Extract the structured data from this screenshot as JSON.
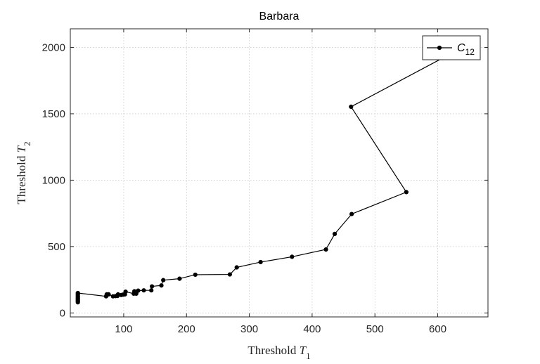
{
  "chart_data": {
    "type": "line",
    "title": "Barbara",
    "xlabel": {
      "prefix": "Threshold ",
      "var": "T",
      "sub": "1"
    },
    "ylabel": {
      "prefix": "Threshold ",
      "var": "T",
      "sub": "2"
    },
    "xlim": [
      15,
      680
    ],
    "ylim": [
      -30,
      2140
    ],
    "xticks": [
      100,
      200,
      300,
      400,
      500,
      600
    ],
    "yticks": [
      0,
      500,
      1000,
      1500,
      2000
    ],
    "grid": true,
    "legend": {
      "placement": "top-right",
      "entries": [
        {
          "base": "C",
          "sub": "12"
        }
      ]
    },
    "series": [
      {
        "name": "C12",
        "color": "#000000",
        "marker": "dot",
        "x": [
          27,
          27,
          27,
          27,
          27,
          27,
          27,
          27,
          27,
          27,
          72,
          73,
          76,
          83,
          87,
          90,
          91,
          96,
          99,
          102,
          103,
          116,
          117,
          120,
          123,
          132,
          144,
          145,
          160,
          163,
          189,
          214,
          269,
          280,
          318,
          368,
          422,
          436,
          463,
          550,
          462,
          608
        ],
        "y": [
          80,
          88,
          95,
          103,
          110,
          118,
          127,
          135,
          143,
          150,
          125,
          140,
          140,
          125,
          127,
          128,
          140,
          135,
          138,
          140,
          160,
          145,
          163,
          145,
          168,
          170,
          170,
          200,
          207,
          247,
          258,
          288,
          290,
          343,
          383,
          423,
          478,
          595,
          745,
          910,
          1553,
          1920
        ]
      }
    ]
  }
}
